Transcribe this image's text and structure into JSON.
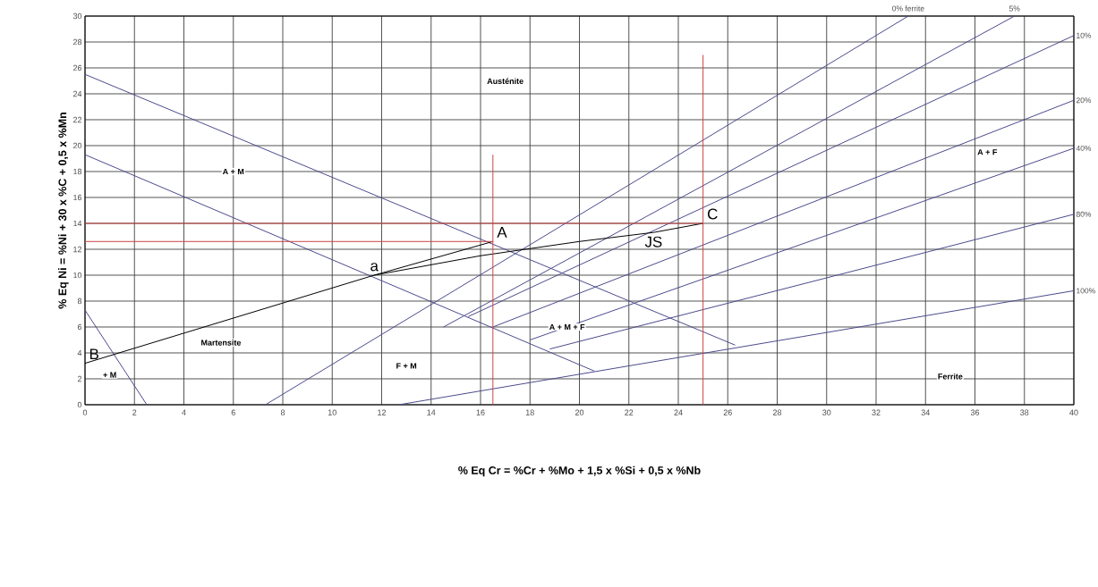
{
  "chart_data": {
    "type": "line",
    "xlabel": "% Eq Cr = %Cr + %Mo + 1,5 x %Si + 0,5 x %Nb",
    "ylabel": "% Eq Ni = %Ni + 30 x %C + 0,5 x %Mn",
    "xlim": [
      0,
      40
    ],
    "ylim": [
      0,
      30
    ],
    "xticks": [
      0,
      2,
      4,
      6,
      8,
      10,
      12,
      14,
      16,
      18,
      20,
      22,
      24,
      26,
      28,
      30,
      32,
      34,
      36,
      38,
      40
    ],
    "yticks": [
      0,
      2,
      4,
      6,
      8,
      10,
      12,
      14,
      16,
      18,
      20,
      22,
      24,
      26,
      28,
      30
    ],
    "grid": true,
    "series": [
      {
        "color": "#4a4a8c",
        "x": [
          0,
          26.3
        ],
        "values": [
          25.5,
          4.6
        ]
      },
      {
        "color": "#4a4a8c",
        "x": [
          0,
          20.6
        ],
        "values": [
          19.3,
          2.6
        ]
      },
      {
        "color": "#4a4a8c",
        "x": [
          0,
          2.5
        ],
        "values": [
          7.3,
          0
        ]
      },
      {
        "name": "0% ferrite",
        "color": "#4a4a8c",
        "x": [
          7.3,
          33.3
        ],
        "values": [
          0,
          30
        ]
      },
      {
        "name": "5%",
        "color": "#4a4a8c",
        "x": [
          14.5,
          37.6
        ],
        "values": [
          6,
          30
        ]
      },
      {
        "name": "10%",
        "color": "#4a4a8c",
        "x": [
          15.5,
          40
        ],
        "values": [
          6.8,
          28.5
        ]
      },
      {
        "name": "20%",
        "color": "#4a4a8c",
        "x": [
          16.5,
          40
        ],
        "values": [
          6,
          23.5
        ]
      },
      {
        "name": "40%",
        "color": "#4a4a8c",
        "x": [
          18,
          40
        ],
        "values": [
          5,
          19.8
        ]
      },
      {
        "name": "80%",
        "color": "#4a4a8c",
        "x": [
          18.8,
          40
        ],
        "values": [
          4.3,
          14.7
        ]
      },
      {
        "name": "100%",
        "color": "#4a4a8c",
        "x": [
          12.7,
          40
        ],
        "values": [
          0,
          8.8
        ]
      },
      {
        "color": "#000000",
        "x": [
          0,
          11.7,
          16.5
        ],
        "values": [
          3.2,
          10,
          12.6
        ]
      },
      {
        "color": "#000000",
        "x": [
          11.7,
          16,
          20,
          23,
          25
        ],
        "values": [
          10,
          11.5,
          12.6,
          13.3,
          14
        ]
      },
      {
        "color": "#cc4444",
        "x": [
          16.5,
          16.5
        ],
        "values": [
          0,
          19.3
        ]
      },
      {
        "color": "#cc4444",
        "x": [
          25,
          25
        ],
        "values": [
          0,
          27
        ]
      },
      {
        "color": "#cc4444",
        "x": [
          0,
          16.5
        ],
        "values": [
          12.6,
          12.6
        ]
      },
      {
        "color": "#cc4444",
        "x": [
          0,
          25
        ],
        "values": [
          14,
          14
        ]
      }
    ],
    "annotations": [
      {
        "text": "A",
        "x": 16.5,
        "y": 12.6
      },
      {
        "text": "a",
        "x": 11.7,
        "y": 10
      },
      {
        "text": "B",
        "x": 0,
        "y": 3.2
      },
      {
        "text": "C",
        "x": 25,
        "y": 14
      },
      {
        "text": "JS",
        "x": 23,
        "y": 13.3
      },
      "Austénite",
      {
        "text": "A + M",
        "x": 6,
        "y": 18
      },
      {
        "text": "A + F",
        "x": 36.5,
        "y": 19.5
      },
      {
        "text": "A + M + F",
        "x": 19.5,
        "y": 6
      },
      {
        "text": "F + M",
        "x": 13,
        "y": 3
      },
      "Martensite",
      "Ferrite",
      {
        "text": "+ M",
        "x": 1,
        "y": 2.3
      }
    ]
  }
}
